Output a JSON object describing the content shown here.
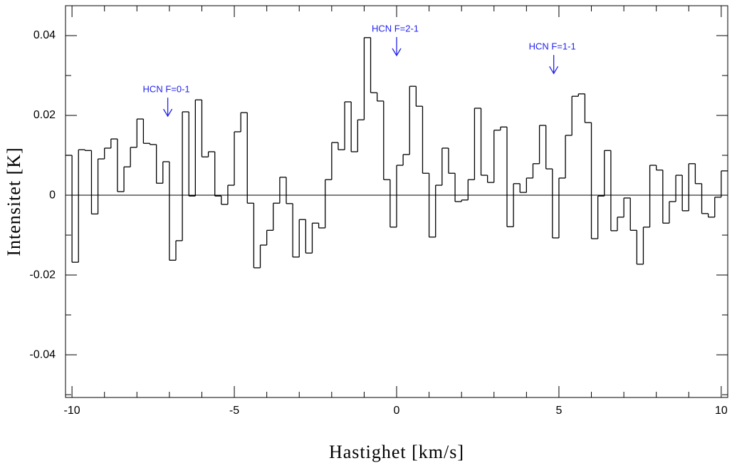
{
  "chart_data": {
    "type": "step",
    "xlabel": "Hastighet [km/s]",
    "ylabel": "Intensitet [K]",
    "x": [
      -10.1,
      -9.9,
      -9.7,
      -9.5,
      -9.3,
      -9.1,
      -8.9,
      -8.7,
      -8.5,
      -8.3,
      -8.1,
      -7.9,
      -7.7,
      -7.5,
      -7.3,
      -7.1,
      -6.9,
      -6.7,
      -6.5,
      -6.3,
      -6.1,
      -5.9,
      -5.7,
      -5.5,
      -5.3,
      -5.1,
      -4.9,
      -4.7,
      -4.5,
      -4.3,
      -4.1,
      -3.9,
      -3.7,
      -3.5,
      -3.3,
      -3.1,
      -2.9,
      -2.7,
      -2.5,
      -2.3,
      -2.1,
      -1.9,
      -1.7,
      -1.5,
      -1.3,
      -1.1,
      -0.9,
      -0.7,
      -0.5,
      -0.3,
      -0.1,
      0.1,
      0.3,
      0.5,
      0.7,
      0.9,
      1.1,
      1.3,
      1.5,
      1.7,
      1.9,
      2.1,
      2.3,
      2.5,
      2.7,
      2.9,
      3.1,
      3.3,
      3.5,
      3.7,
      3.9,
      4.1,
      4.3,
      4.5,
      4.7,
      4.9,
      5.1,
      5.3,
      5.5,
      5.7,
      5.9,
      6.1,
      6.3,
      6.5,
      6.7,
      6.9,
      7.1,
      7.3,
      7.5,
      7.7,
      7.9,
      8.1,
      8.3,
      8.5,
      8.7,
      8.9,
      9.1,
      9.3,
      9.5,
      9.7,
      9.9,
      10.1
    ],
    "values": [
      0.01,
      -0.0168,
      0.0114,
      0.0112,
      -0.0047,
      0.0091,
      0.0118,
      0.0141,
      0.0009,
      0.0071,
      0.012,
      0.0191,
      0.013,
      0.0127,
      0.003,
      0.0084,
      -0.0163,
      -0.0114,
      0.0209,
      -0.0002,
      0.0239,
      0.0096,
      0.0109,
      -0.0002,
      -0.0023,
      0.0025,
      0.0159,
      0.0207,
      -0.002,
      -0.0182,
      -0.0125,
      -0.0088,
      -0.002,
      0.0045,
      -0.0021,
      -0.0155,
      -0.0061,
      -0.0145,
      -0.007,
      -0.0082,
      0.0039,
      0.0132,
      0.0114,
      0.0234,
      0.0109,
      0.0189,
      0.0395,
      0.0257,
      0.0236,
      0.0039,
      -0.008,
      0.0075,
      0.0102,
      0.0273,
      0.0223,
      0.0055,
      -0.0105,
      0.0025,
      0.0118,
      0.0055,
      -0.0016,
      -0.0012,
      0.0039,
      0.0218,
      0.005,
      0.0032,
      0.0163,
      0.0171,
      -0.0079,
      0.0029,
      0.0007,
      0.0043,
      0.0079,
      0.0175,
      0.0066,
      -0.0107,
      0.0043,
      0.015,
      0.0248,
      0.0254,
      0.0182,
      -0.0109,
      -0.0002,
      0.0112,
      -0.0089,
      -0.0055,
      -0.0007,
      -0.0088,
      -0.0173,
      -0.008,
      0.0075,
      0.0063,
      -0.007,
      -0.0016,
      0.005,
      -0.0039,
      0.0079,
      0.0029,
      -0.0046,
      -0.0055,
      -0.0005,
      0.0061
    ],
    "color": "#000000",
    "xlim": [
      -10.2,
      10.2
    ],
    "ylim": [
      -0.0507,
      0.0475
    ],
    "xticks": [
      -10,
      -5,
      0,
      5,
      10
    ],
    "yticks": [
      -0.04,
      -0.02,
      0,
      0.02,
      0.04
    ],
    "xminorticks": [
      -9,
      -8,
      -7,
      -6,
      -4,
      -3,
      -2,
      -1,
      1,
      2,
      3,
      4,
      6,
      7,
      8,
      9
    ],
    "yminorticks": [
      -0.05,
      -0.03,
      -0.01,
      0.01,
      0.03
    ],
    "zero_line": true,
    "annotation_color": "#2222ee",
    "annotations": [
      {
        "text": "HCN F=0-1",
        "x": -7.05,
        "y": 0.0198
      },
      {
        "text": "HCN F=2-1",
        "x": 0,
        "y": 0.035
      },
      {
        "text": "HCN F=1-1",
        "x": 4.84,
        "y": 0.0305
      }
    ]
  }
}
